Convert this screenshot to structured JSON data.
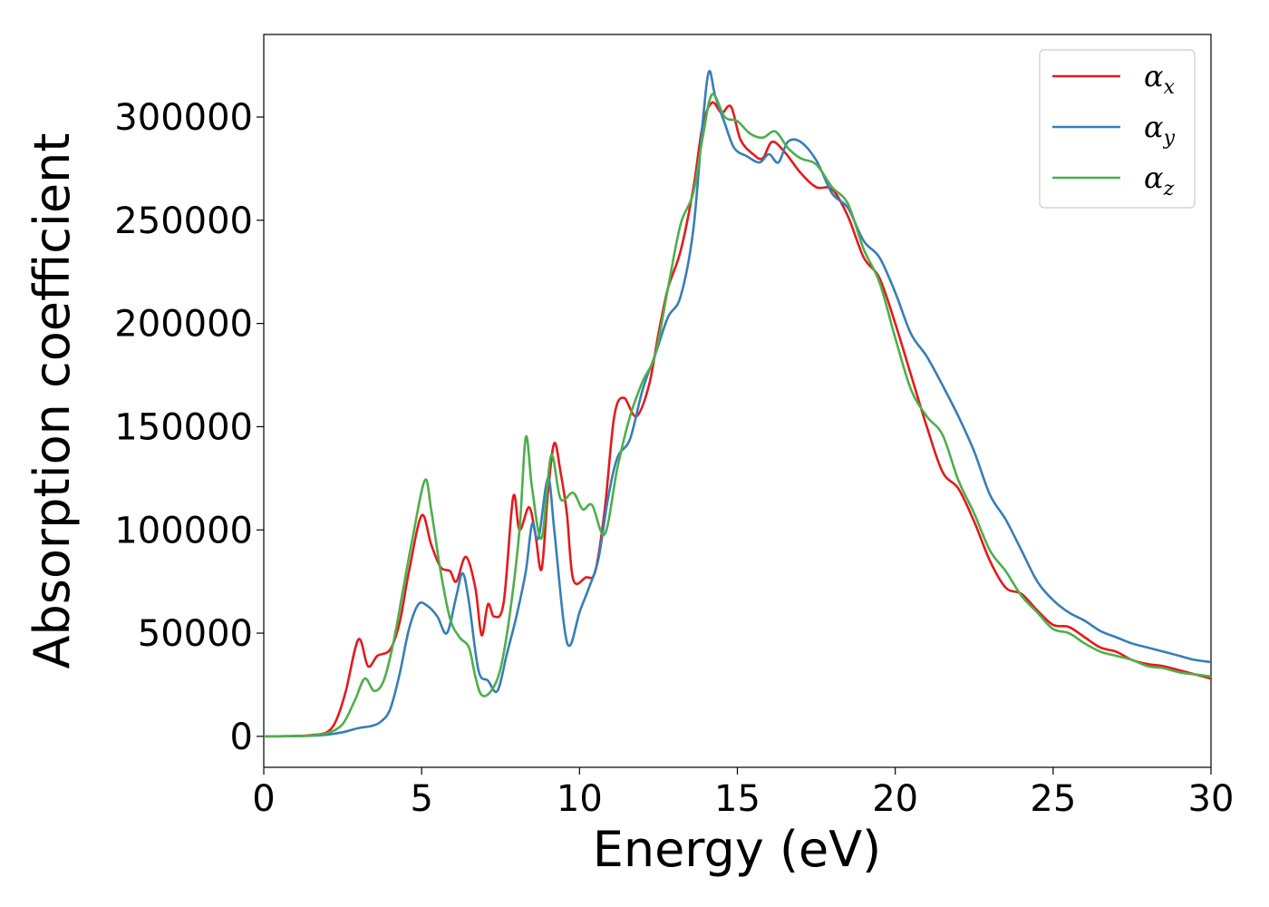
{
  "chart_data": {
    "type": "line",
    "title": "",
    "xlabel": "Energy (eV)",
    "ylabel": "Absorption coefficient",
    "xlim": [
      0,
      30
    ],
    "ylim": [
      -15000,
      340000
    ],
    "xticks": [
      0,
      5,
      10,
      15,
      20,
      25,
      30
    ],
    "xtick_labels": [
      "0",
      "5",
      "10",
      "15",
      "20",
      "25",
      "30"
    ],
    "yticks": [
      0,
      50000,
      100000,
      150000,
      200000,
      250000,
      300000
    ],
    "ytick_labels": [
      "0",
      "50000",
      "100000",
      "150000",
      "200000",
      "250000",
      "300000"
    ],
    "grid": false,
    "legend_position": "top-right",
    "series": [
      {
        "name": "α",
        "subscript": "x",
        "color": "#e41a1c",
        "points": [
          [
            0,
            0
          ],
          [
            1,
            200
          ],
          [
            1.5,
            600
          ],
          [
            2,
            2000
          ],
          [
            2.3,
            8000
          ],
          [
            2.6,
            22000
          ],
          [
            3,
            47000
          ],
          [
            3.3,
            34000
          ],
          [
            3.6,
            39000
          ],
          [
            4,
            42000
          ],
          [
            4.3,
            55000
          ],
          [
            4.6,
            80000
          ],
          [
            5,
            107000
          ],
          [
            5.3,
            93000
          ],
          [
            5.6,
            82000
          ],
          [
            5.9,
            80000
          ],
          [
            6.1,
            75000
          ],
          [
            6.4,
            87000
          ],
          [
            6.7,
            72000
          ],
          [
            6.9,
            49000
          ],
          [
            7.1,
            64000
          ],
          [
            7.3,
            58000
          ],
          [
            7.6,
            65000
          ],
          [
            7.9,
            116000
          ],
          [
            8.1,
            100000
          ],
          [
            8.4,
            111000
          ],
          [
            8.6,
            98000
          ],
          [
            8.8,
            81000
          ],
          [
            9.0,
            118000
          ],
          [
            9.2,
            142000
          ],
          [
            9.4,
            128000
          ],
          [
            9.6,
            108000
          ],
          [
            9.8,
            76000
          ],
          [
            10.2,
            77000
          ],
          [
            10.5,
            80000
          ],
          [
            10.8,
            110000
          ],
          [
            11.1,
            155000
          ],
          [
            11.4,
            164000
          ],
          [
            11.8,
            155000
          ],
          [
            12.2,
            170000
          ],
          [
            12.5,
            195000
          ],
          [
            12.8,
            217000
          ],
          [
            13.2,
            235000
          ],
          [
            13.6,
            265000
          ],
          [
            13.9,
            296000
          ],
          [
            14.2,
            307000
          ],
          [
            14.5,
            302000
          ],
          [
            14.8,
            305000
          ],
          [
            15.1,
            289000
          ],
          [
            15.5,
            282000
          ],
          [
            15.8,
            280000
          ],
          [
            16.1,
            288000
          ],
          [
            16.5,
            283000
          ],
          [
            17,
            273000
          ],
          [
            17.5,
            266000
          ],
          [
            18,
            265000
          ],
          [
            18.5,
            252000
          ],
          [
            19,
            232000
          ],
          [
            19.5,
            222000
          ],
          [
            20,
            200000
          ],
          [
            20.5,
            175000
          ],
          [
            21,
            150000
          ],
          [
            21.5,
            128000
          ],
          [
            22,
            120000
          ],
          [
            22.5,
            104000
          ],
          [
            23,
            85000
          ],
          [
            23.5,
            72000
          ],
          [
            24,
            69000
          ],
          [
            24.5,
            61000
          ],
          [
            25,
            54000
          ],
          [
            25.5,
            53000
          ],
          [
            26,
            48000
          ],
          [
            26.5,
            43000
          ],
          [
            27,
            41000
          ],
          [
            27.5,
            37000
          ],
          [
            28,
            35000
          ],
          [
            28.5,
            34000
          ],
          [
            29,
            32000
          ],
          [
            29.5,
            30000
          ],
          [
            30,
            28000
          ]
        ]
      },
      {
        "name": "α",
        "subscript": "y",
        "color": "#377eb8",
        "points": [
          [
            0,
            0
          ],
          [
            1,
            100
          ],
          [
            1.5,
            300
          ],
          [
            2,
            800
          ],
          [
            2.5,
            2000
          ],
          [
            3,
            4000
          ],
          [
            3.4,
            5000
          ],
          [
            3.7,
            7000
          ],
          [
            4,
            13000
          ],
          [
            4.3,
            30000
          ],
          [
            4.6,
            52000
          ],
          [
            4.9,
            64000
          ],
          [
            5.2,
            63000
          ],
          [
            5.5,
            58000
          ],
          [
            5.8,
            50000
          ],
          [
            6.1,
            68000
          ],
          [
            6.3,
            79000
          ],
          [
            6.5,
            65000
          ],
          [
            6.8,
            32000
          ],
          [
            7.1,
            27000
          ],
          [
            7.4,
            22000
          ],
          [
            7.7,
            40000
          ],
          [
            8.0,
            58000
          ],
          [
            8.3,
            80000
          ],
          [
            8.5,
            103000
          ],
          [
            8.7,
            96000
          ],
          [
            9.0,
            125000
          ],
          [
            9.2,
            100000
          ],
          [
            9.5,
            55000
          ],
          [
            9.7,
            44000
          ],
          [
            10.0,
            60000
          ],
          [
            10.3,
            72000
          ],
          [
            10.6,
            86000
          ],
          [
            10.9,
            115000
          ],
          [
            11.2,
            135000
          ],
          [
            11.6,
            144000
          ],
          [
            12.0,
            168000
          ],
          [
            12.4,
            185000
          ],
          [
            12.8,
            203000
          ],
          [
            13.2,
            213000
          ],
          [
            13.6,
            245000
          ],
          [
            13.9,
            297000
          ],
          [
            14.1,
            322000
          ],
          [
            14.3,
            310000
          ],
          [
            14.6,
            297000
          ],
          [
            14.9,
            285000
          ],
          [
            15.3,
            281000
          ],
          [
            15.7,
            278000
          ],
          [
            16.0,
            282000
          ],
          [
            16.3,
            278000
          ],
          [
            16.6,
            288000
          ],
          [
            17.0,
            288000
          ],
          [
            17.5,
            279000
          ],
          [
            18.0,
            263000
          ],
          [
            18.5,
            256000
          ],
          [
            19.0,
            240000
          ],
          [
            19.5,
            232000
          ],
          [
            20,
            215000
          ],
          [
            20.5,
            195000
          ],
          [
            21,
            184000
          ],
          [
            21.5,
            170000
          ],
          [
            22,
            155000
          ],
          [
            22.5,
            138000
          ],
          [
            23,
            117000
          ],
          [
            23.5,
            105000
          ],
          [
            24,
            90000
          ],
          [
            24.5,
            75000
          ],
          [
            25,
            66000
          ],
          [
            25.5,
            60000
          ],
          [
            26,
            56000
          ],
          [
            26.5,
            51000
          ],
          [
            27,
            48000
          ],
          [
            27.5,
            45000
          ],
          [
            28,
            43000
          ],
          [
            28.5,
            41000
          ],
          [
            29,
            39000
          ],
          [
            29.5,
            37000
          ],
          [
            30,
            36000
          ]
        ]
      },
      {
        "name": "α",
        "subscript": "z",
        "color": "#4daf4a",
        "points": [
          [
            0,
            0
          ],
          [
            1,
            100
          ],
          [
            1.5,
            400
          ],
          [
            2,
            1500
          ],
          [
            2.5,
            6000
          ],
          [
            2.9,
            18000
          ],
          [
            3.2,
            28000
          ],
          [
            3.5,
            22000
          ],
          [
            3.8,
            27000
          ],
          [
            4.1,
            45000
          ],
          [
            4.4,
            70000
          ],
          [
            4.7,
            95000
          ],
          [
            5.1,
            124000
          ],
          [
            5.3,
            110000
          ],
          [
            5.6,
            80000
          ],
          [
            5.9,
            57000
          ],
          [
            6.2,
            48000
          ],
          [
            6.5,
            43000
          ],
          [
            6.7,
            29000
          ],
          [
            6.9,
            20000
          ],
          [
            7.2,
            22000
          ],
          [
            7.5,
            33000
          ],
          [
            7.8,
            60000
          ],
          [
            8.1,
            100000
          ],
          [
            8.3,
            145000
          ],
          [
            8.5,
            120000
          ],
          [
            8.8,
            96000
          ],
          [
            9.1,
            136000
          ],
          [
            9.4,
            115000
          ],
          [
            9.8,
            118000
          ],
          [
            10.1,
            110000
          ],
          [
            10.4,
            112000
          ],
          [
            10.8,
            98000
          ],
          [
            11.2,
            130000
          ],
          [
            11.6,
            155000
          ],
          [
            12,
            172000
          ],
          [
            12.4,
            185000
          ],
          [
            12.8,
            217000
          ],
          [
            13.2,
            248000
          ],
          [
            13.6,
            263000
          ],
          [
            13.9,
            290000
          ],
          [
            14.2,
            311000
          ],
          [
            14.6,
            300000
          ],
          [
            15.0,
            298000
          ],
          [
            15.4,
            292000
          ],
          [
            15.8,
            290000
          ],
          [
            16.2,
            293000
          ],
          [
            16.6,
            285000
          ],
          [
            17,
            280000
          ],
          [
            17.5,
            277000
          ],
          [
            18,
            266000
          ],
          [
            18.5,
            258000
          ],
          [
            19,
            236000
          ],
          [
            19.5,
            220000
          ],
          [
            20,
            193000
          ],
          [
            20.5,
            168000
          ],
          [
            21,
            155000
          ],
          [
            21.5,
            146000
          ],
          [
            22,
            124000
          ],
          [
            22.5,
            108000
          ],
          [
            23,
            90000
          ],
          [
            23.5,
            80000
          ],
          [
            24,
            68000
          ],
          [
            24.5,
            60000
          ],
          [
            25,
            52000
          ],
          [
            25.5,
            50000
          ],
          [
            26,
            45000
          ],
          [
            26.5,
            41000
          ],
          [
            27,
            39000
          ],
          [
            27.5,
            37000
          ],
          [
            28,
            34000
          ],
          [
            28.5,
            33000
          ],
          [
            29,
            31000
          ],
          [
            29.5,
            30000
          ],
          [
            30,
            29000
          ]
        ]
      }
    ]
  }
}
